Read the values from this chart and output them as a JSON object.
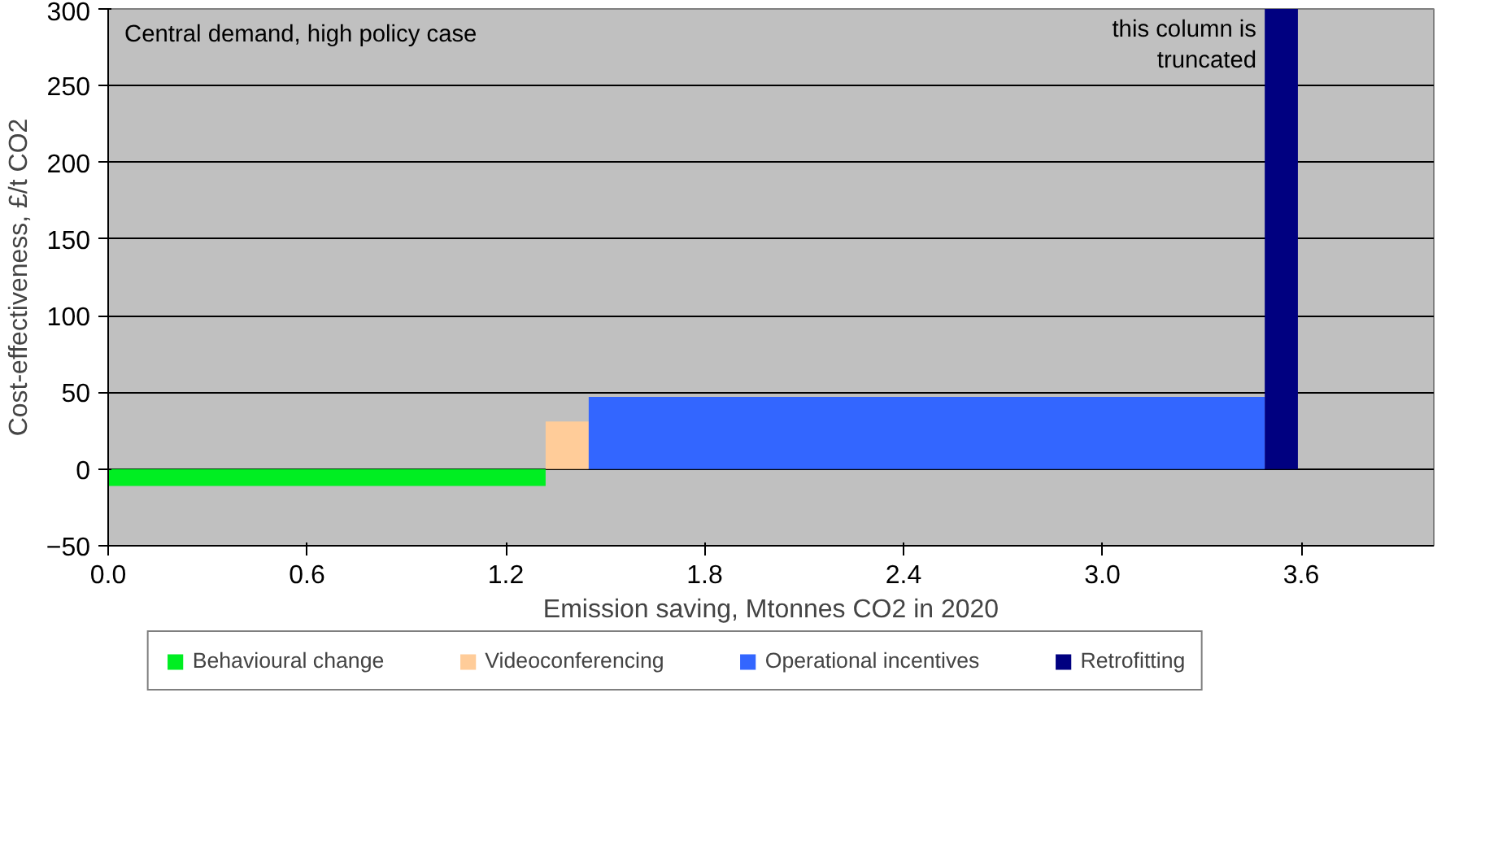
{
  "chart_data": {
    "type": "area",
    "xlabel": "Emission saving, Mtonnes CO2 in 2020",
    "ylabel": "Cost-effectiveness, £/t CO2",
    "xlim": [
      0,
      4
    ],
    "xticks": [
      {
        "value": 0,
        "label": "0.0"
      },
      0.6,
      1.2,
      1.8,
      2.4,
      {
        "value": 3,
        "label": "3.0"
      },
      3.6
    ],
    "ylim": [
      -50,
      300
    ],
    "yticks": [
      -50,
      0,
      50,
      100,
      150,
      200,
      250,
      300
    ],
    "grid": "y",
    "legend": "bottom",
    "series": [
      {
        "name": "Behavioural change",
        "color": "#00ee22",
        "x": [
          0,
          1.32
        ],
        "values": [
          -11,
          -11
        ]
      },
      {
        "name": "Videoconferencing",
        "color": "#ffcc99",
        "x": [
          1.32,
          1.45
        ],
        "values": [
          31,
          31
        ]
      },
      {
        "name": "Operational incentives",
        "color": "#3366ff",
        "x": [
          1.45,
          3.49
        ],
        "values": [
          47,
          47
        ]
      },
      {
        "name": "Retrofitting",
        "color": "#000080",
        "x": [
          3.49,
          3.59
        ],
        "values": [
          300,
          300
        ]
      }
    ],
    "annotations": [
      "Central demand, high policy case",
      "this column is\ntruncated"
    ]
  }
}
